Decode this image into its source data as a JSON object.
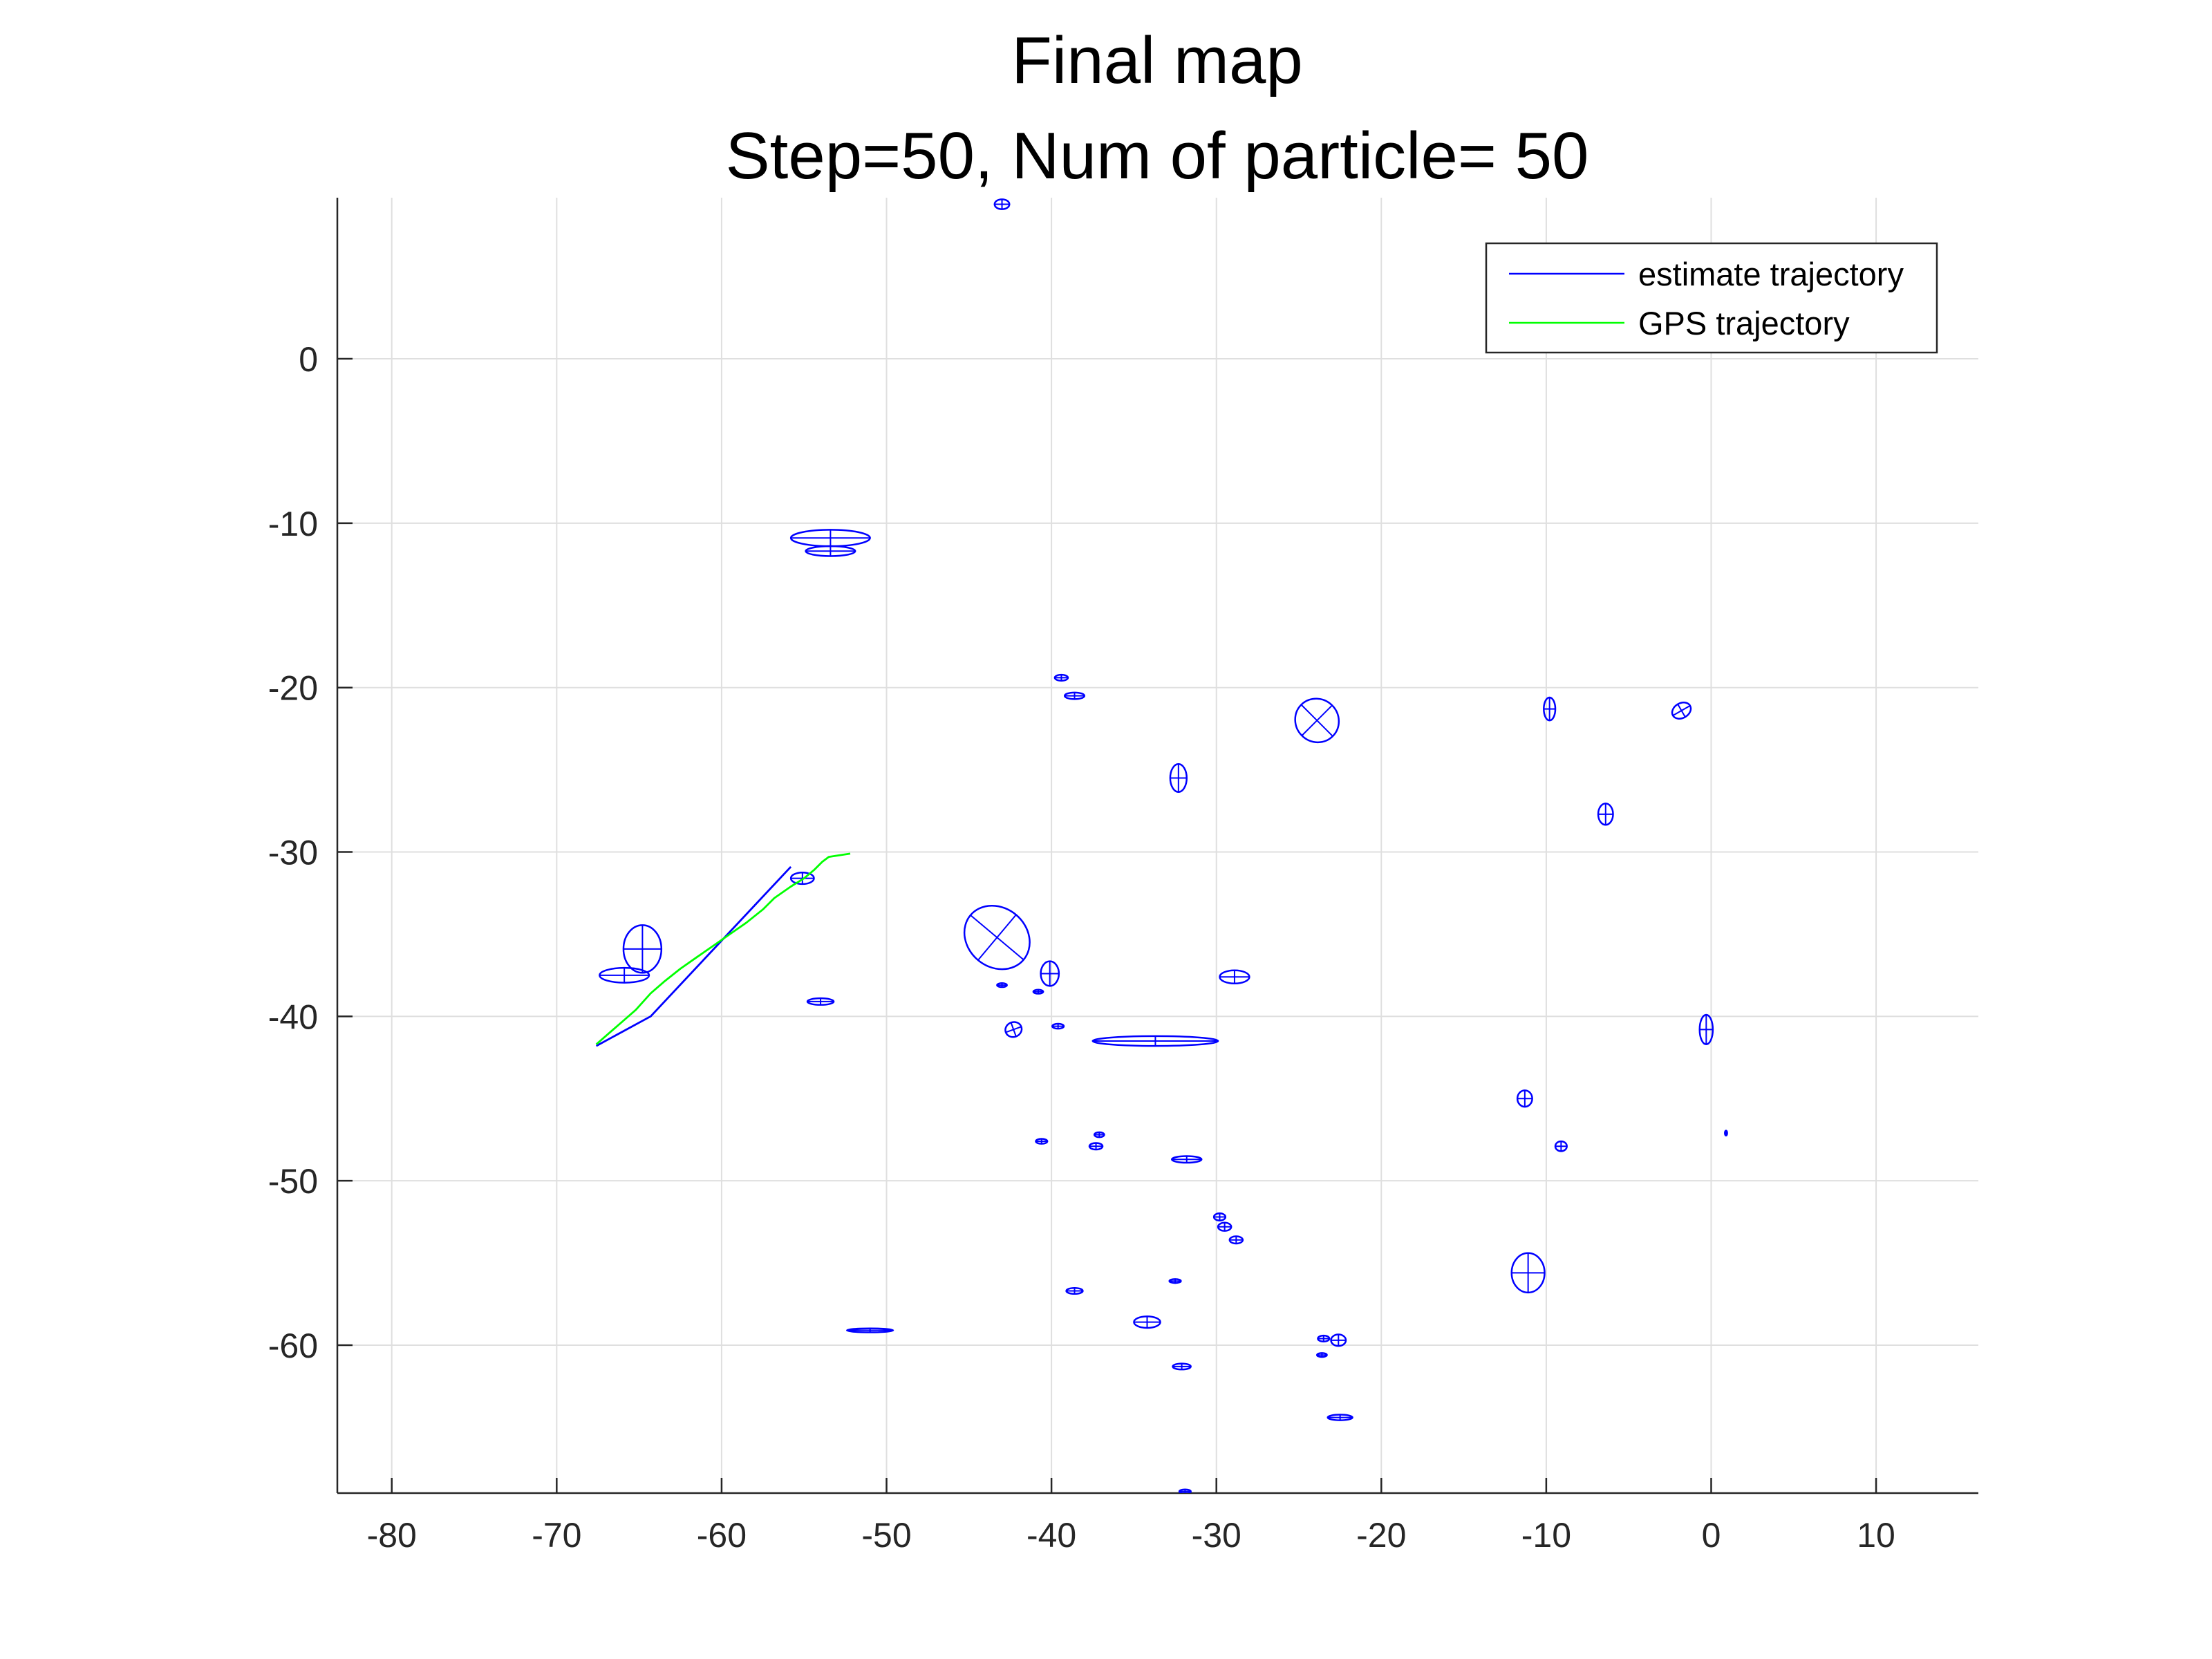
{
  "chart_data": {
    "type": "line",
    "title": [
      "Final map",
      "Step=50, Num of particle= 50"
    ],
    "xlabel": "",
    "ylabel": "",
    "xlim": [
      -83.3,
      16.2
    ],
    "ylim": [
      -69.0,
      9.8
    ],
    "xticks": [
      -80,
      -70,
      -60,
      -50,
      -40,
      -30,
      -20,
      -10,
      0,
      10
    ],
    "yticks": [
      0,
      -10,
      -20,
      -30,
      -40,
      -50,
      -60
    ],
    "grid": true,
    "legend_position": "top-right",
    "series": [
      {
        "name": "estimate trajectory",
        "color": "#0000ff",
        "x": [
          -67.6,
          -64.3,
          -55.8
        ],
        "y": [
          -41.8,
          -40.0,
          -30.9
        ]
      },
      {
        "name": "GPS trajectory",
        "color": "#00ff00",
        "x": [
          -67.6,
          -66.8,
          -66.0,
          -65.2,
          -64.3,
          -63.5,
          -62.5,
          -61.5,
          -60.5,
          -59.5,
          -58.5,
          -57.5,
          -56.8,
          -55.8,
          -55.0,
          -54.4,
          -53.9,
          -53.5,
          -52.2
        ],
        "y": [
          -41.7,
          -41.0,
          -40.3,
          -39.6,
          -38.6,
          -37.9,
          -37.1,
          -36.4,
          -35.7,
          -35.0,
          -34.3,
          -33.5,
          -32.8,
          -32.1,
          -31.6,
          -31.1,
          -30.6,
          -30.3,
          -30.1
        ]
      }
    ],
    "landmarks": {
      "color": "#0000ff",
      "items": [
        {
          "x": -43.0,
          "y": 9.4,
          "rx": 0.45,
          "ry": 0.3,
          "angle": 0
        },
        {
          "x": -53.4,
          "y": -10.9,
          "rx": 2.4,
          "ry": 0.5,
          "angle": 0
        },
        {
          "x": -53.4,
          "y": -11.7,
          "rx": 1.5,
          "ry": 0.3,
          "angle": 0
        },
        {
          "x": -39.4,
          "y": -19.4,
          "rx": 0.4,
          "ry": 0.18,
          "angle": 0
        },
        {
          "x": -38.6,
          "y": -20.5,
          "rx": 0.6,
          "ry": 0.2,
          "angle": 0
        },
        {
          "x": -23.9,
          "y": -22.0,
          "rx": 1.35,
          "ry": 1.3,
          "angle": 45
        },
        {
          "x": -9.8,
          "y": -21.3,
          "rx": 0.35,
          "ry": 0.7,
          "angle": 0
        },
        {
          "x": -1.8,
          "y": -21.4,
          "rx": 0.6,
          "ry": 0.45,
          "angle": -30
        },
        {
          "x": -32.3,
          "y": -25.5,
          "rx": 0.5,
          "ry": 0.85,
          "angle": 0
        },
        {
          "x": -6.4,
          "y": -27.7,
          "rx": 0.45,
          "ry": 0.65,
          "angle": 0
        },
        {
          "x": -55.1,
          "y": -31.6,
          "rx": 0.7,
          "ry": 0.35,
          "angle": 0
        },
        {
          "x": -43.3,
          "y": -35.2,
          "rx": 2.1,
          "ry": 1.8,
          "angle": 40
        },
        {
          "x": -64.8,
          "y": -35.9,
          "rx": 1.15,
          "ry": 1.45,
          "angle": 0
        },
        {
          "x": -65.9,
          "y": -37.5,
          "rx": 1.5,
          "ry": 0.45,
          "angle": 0
        },
        {
          "x": -40.1,
          "y": -37.4,
          "rx": 0.55,
          "ry": 0.75,
          "angle": 0
        },
        {
          "x": -28.9,
          "y": -37.6,
          "rx": 0.9,
          "ry": 0.4,
          "angle": 0
        },
        {
          "x": -43.0,
          "y": -38.1,
          "rx": 0.3,
          "ry": 0.12,
          "angle": 0
        },
        {
          "x": -40.8,
          "y": -38.5,
          "rx": 0.3,
          "ry": 0.12,
          "angle": 0
        },
        {
          "x": -54.0,
          "y": -39.1,
          "rx": 0.8,
          "ry": 0.2,
          "angle": 0
        },
        {
          "x": -42.3,
          "y": -40.8,
          "rx": 0.5,
          "ry": 0.45,
          "angle": -20
        },
        {
          "x": -39.6,
          "y": -40.6,
          "rx": 0.35,
          "ry": 0.15,
          "angle": 0
        },
        {
          "x": -33.7,
          "y": -41.5,
          "rx": 3.8,
          "ry": 0.3,
          "angle": 0
        },
        {
          "x": -0.3,
          "y": -40.8,
          "rx": 0.4,
          "ry": 0.9,
          "angle": 0
        },
        {
          "x": -11.3,
          "y": -45.0,
          "rx": 0.45,
          "ry": 0.5,
          "angle": 0
        },
        {
          "x": -40.6,
          "y": -47.6,
          "rx": 0.35,
          "ry": 0.15,
          "angle": 0
        },
        {
          "x": -37.1,
          "y": -47.2,
          "rx": 0.3,
          "ry": 0.15,
          "angle": 0
        },
        {
          "x": -37.3,
          "y": -47.9,
          "rx": 0.4,
          "ry": 0.2,
          "angle": 0
        },
        {
          "x": -9.1,
          "y": -47.9,
          "rx": 0.35,
          "ry": 0.3,
          "angle": 0
        },
        {
          "x": 0.9,
          "y": -47.1,
          "rx": 0.07,
          "ry": 0.15,
          "angle": 0
        },
        {
          "x": -31.8,
          "y": -48.7,
          "rx": 0.9,
          "ry": 0.2,
          "angle": 0
        },
        {
          "x": -29.8,
          "y": -52.2,
          "rx": 0.35,
          "ry": 0.22,
          "angle": 0
        },
        {
          "x": -29.5,
          "y": -52.8,
          "rx": 0.4,
          "ry": 0.25,
          "angle": 0
        },
        {
          "x": -28.8,
          "y": -53.6,
          "rx": 0.4,
          "ry": 0.22,
          "angle": 0
        },
        {
          "x": -11.1,
          "y": -55.6,
          "rx": 1.0,
          "ry": 1.2,
          "angle": 0
        },
        {
          "x": -32.5,
          "y": -56.1,
          "rx": 0.35,
          "ry": 0.12,
          "angle": 0
        },
        {
          "x": -38.6,
          "y": -56.7,
          "rx": 0.5,
          "ry": 0.18,
          "angle": 0
        },
        {
          "x": -34.2,
          "y": -58.6,
          "rx": 0.8,
          "ry": 0.35,
          "angle": 0
        },
        {
          "x": -23.5,
          "y": -59.6,
          "rx": 0.35,
          "ry": 0.18,
          "angle": 0
        },
        {
          "x": -22.6,
          "y": -59.7,
          "rx": 0.45,
          "ry": 0.35,
          "angle": 0
        },
        {
          "x": -51.0,
          "y": -59.1,
          "rx": 1.4,
          "ry": 0.12,
          "angle": 0
        },
        {
          "x": -23.6,
          "y": -60.6,
          "rx": 0.3,
          "ry": 0.12,
          "angle": 0
        },
        {
          "x": -32.1,
          "y": -61.3,
          "rx": 0.55,
          "ry": 0.18,
          "angle": 0
        },
        {
          "x": -22.5,
          "y": -64.4,
          "rx": 0.75,
          "ry": 0.17,
          "angle": 0
        },
        {
          "x": -31.9,
          "y": -68.9,
          "rx": 0.35,
          "ry": 0.12,
          "angle": 0
        }
      ]
    }
  }
}
